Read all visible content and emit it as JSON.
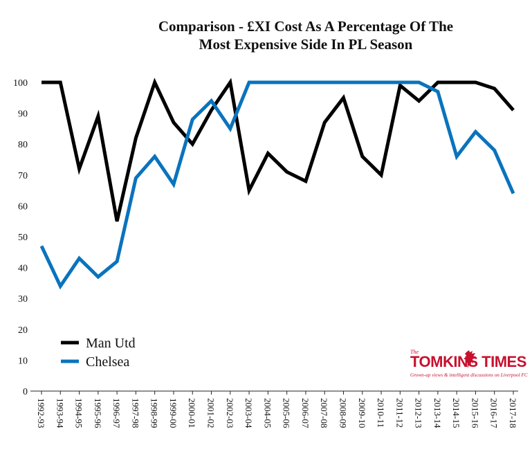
{
  "chart_data": {
    "type": "line",
    "title_lines": [
      "Comparison - £XI Cost As A Percentage Of The",
      "Most Expensive Side In PL Season"
    ],
    "categories": [
      "1992-93",
      "1993-94",
      "1994-95",
      "1995-96",
      "1996-97",
      "1997-98",
      "1998-99",
      "1999-00",
      "2000-01",
      "2001-02",
      "2002-03",
      "2003-04",
      "2004-05",
      "2005-06",
      "2006-07",
      "2007-08",
      "2008-09",
      "2009-10",
      "2010-11",
      "2011-12",
      "2012-13",
      "2013-14",
      "2014-15",
      "2015-16",
      "2016-17",
      "2017-18"
    ],
    "series": [
      {
        "name": "Man Utd",
        "color": "#000000",
        "values": [
          100,
          100,
          72,
          89,
          55,
          82,
          100,
          87,
          80,
          91,
          100,
          65,
          77,
          71,
          68,
          87,
          95,
          76,
          70,
          99,
          94,
          100,
          100,
          100,
          98,
          91
        ]
      },
      {
        "name": "Chelsea",
        "color": "#0a73bd",
        "values": [
          47,
          34,
          43,
          37,
          42,
          69,
          76,
          67,
          88,
          94,
          85,
          100,
          100,
          100,
          100,
          100,
          100,
          100,
          100,
          100,
          100,
          97,
          76,
          84,
          78,
          64
        ]
      }
    ],
    "ylim": [
      0,
      100
    ],
    "yticks": [
      0,
      10,
      20,
      30,
      40,
      50,
      60,
      70,
      80,
      90,
      100
    ],
    "grid": false,
    "legend_position": "bottom-left",
    "xlabel": "",
    "ylabel": ""
  },
  "logo": {
    "the": "The",
    "name": "TOMKINS TIMES",
    "tagline": "Grown-up views & intelligent discussions on Liverpool FC",
    "color": "#c8102e",
    "icon": "liverbird-icon"
  }
}
